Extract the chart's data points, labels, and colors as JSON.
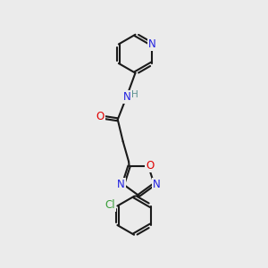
{
  "background_color": "#ebebeb",
  "bond_color": "#1a1a1a",
  "nitrogen_color": "#2020e0",
  "oxygen_color": "#e00000",
  "chlorine_color": "#3a9e3a",
  "hydrogen_color": "#5a9090",
  "line_width": 1.5,
  "figsize": [
    3.0,
    3.0
  ],
  "dpi": 100,
  "xlim": [
    0,
    10
  ],
  "ylim": [
    0,
    10
  ]
}
